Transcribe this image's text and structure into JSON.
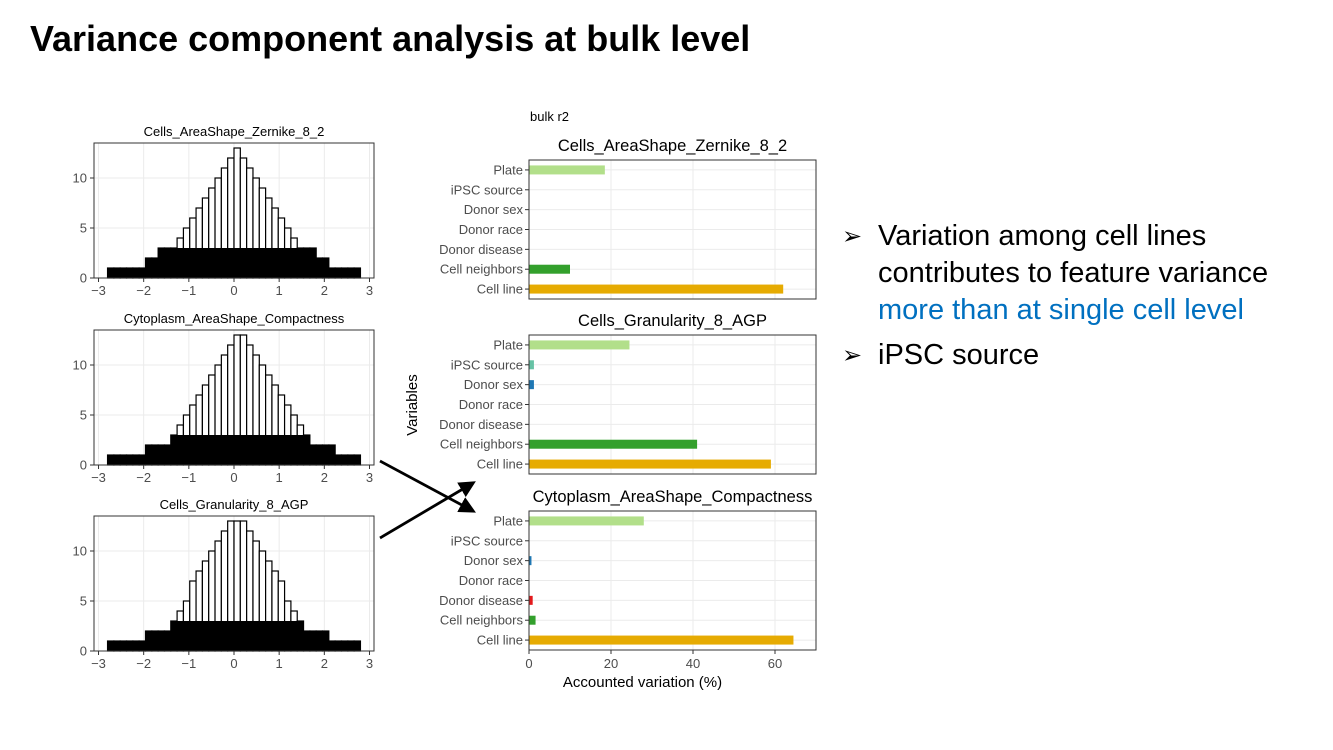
{
  "slide": {
    "title": "Variance component analysis at bulk level",
    "bullets": [
      {
        "marker": "➢",
        "lines": [
          "Variation among cell lines",
          "contributes to feature variance"
        ],
        "highlight": "more than at single cell level"
      },
      {
        "marker": "➢",
        "lines": [
          "iPSC source"
        ],
        "highlight": ""
      }
    ]
  },
  "chart_data": [
    {
      "type": "bar",
      "subtype": "histogram",
      "title": "Cells_AreaShape_Zernike_8_2",
      "xlim": [
        -3.1,
        3.1
      ],
      "ylim": [
        0,
        13.5
      ],
      "xticks": [
        -3,
        -2,
        -1,
        0,
        1,
        2,
        3
      ],
      "yticks": [
        0,
        5,
        10
      ],
      "outline_counts": [
        1,
        1,
        1,
        1,
        1,
        1,
        2,
        2,
        3,
        3,
        3,
        4,
        5,
        6,
        7,
        8,
        9,
        10,
        11,
        12,
        13,
        12,
        11,
        10,
        9,
        8,
        7,
        6,
        5,
        4,
        3,
        3,
        3,
        2,
        2,
        1,
        1,
        1,
        1,
        1
      ],
      "filled_counts": [
        1,
        1,
        1,
        1,
        1,
        1,
        2,
        2,
        3,
        3,
        3,
        3,
        3,
        3,
        3,
        3,
        3,
        3,
        3,
        3,
        3,
        3,
        3,
        3,
        3,
        3,
        3,
        3,
        3,
        3,
        3,
        3,
        3,
        2,
        2,
        1,
        1,
        1,
        1,
        1
      ]
    },
    {
      "type": "bar",
      "subtype": "histogram",
      "title": "Cytoplasm_AreaShape_Compactness",
      "xlim": [
        -3.1,
        3.1
      ],
      "ylim": [
        0,
        13.5
      ],
      "xticks": [
        -3,
        -2,
        -1,
        0,
        1,
        2,
        3
      ],
      "yticks": [
        0,
        5,
        10
      ],
      "outline_counts": [
        1,
        1,
        1,
        1,
        1,
        1,
        2,
        2,
        2,
        2,
        3,
        4,
        5,
        6,
        7,
        8,
        9,
        10,
        11,
        12,
        13,
        13,
        12,
        11,
        10,
        9,
        8,
        7,
        6,
        5,
        4,
        3,
        2,
        2,
        2,
        2,
        1,
        1,
        1,
        1
      ],
      "filled_counts": [
        1,
        1,
        1,
        1,
        1,
        1,
        2,
        2,
        2,
        2,
        3,
        3,
        3,
        3,
        3,
        3,
        3,
        3,
        3,
        3,
        3,
        3,
        3,
        3,
        3,
        3,
        3,
        3,
        3,
        3,
        3,
        3,
        2,
        2,
        2,
        2,
        1,
        1,
        1,
        1
      ]
    },
    {
      "type": "bar",
      "subtype": "histogram",
      "title": "Cells_Granularity_8_AGP",
      "xlim": [
        -3.1,
        3.1
      ],
      "ylim": [
        0,
        13.5
      ],
      "xticks": [
        -3,
        -2,
        -1,
        0,
        1,
        2,
        3
      ],
      "yticks": [
        0,
        5,
        10
      ],
      "outline_counts": [
        1,
        1,
        1,
        1,
        1,
        1,
        2,
        2,
        2,
        2,
        3,
        4,
        5,
        7,
        8,
        9,
        10,
        11,
        12,
        13,
        13,
        13,
        12,
        11,
        10,
        9,
        8,
        7,
        5,
        4,
        3,
        2,
        2,
        2,
        2,
        1,
        1,
        1,
        1,
        1
      ],
      "filled_counts": [
        1,
        1,
        1,
        1,
        1,
        1,
        2,
        2,
        2,
        2,
        3,
        3,
        3,
        3,
        3,
        3,
        3,
        3,
        3,
        3,
        3,
        3,
        3,
        3,
        3,
        3,
        3,
        3,
        3,
        3,
        3,
        2,
        2,
        2,
        2,
        1,
        1,
        1,
        1,
        1
      ]
    },
    {
      "type": "bar",
      "orientation": "horizontal",
      "header": "bulk r2",
      "ylabel": "Variables",
      "xlabel": "Accounted variation (%)",
      "xlim": [
        0,
        70
      ],
      "xticks": [
        0,
        20,
        40,
        60
      ],
      "categories": [
        "Plate",
        "iPSC source",
        "Donor sex",
        "Donor race",
        "Donor disease",
        "Cell neighbors",
        "Cell line"
      ],
      "colors": [
        "#b2df8a",
        "#66c2a5",
        "#1f78b4",
        "#a6cee3",
        "#e31a1c",
        "#33a02c",
        "#e6ab02"
      ],
      "panels": [
        {
          "title": "Cells_AreaShape_Zernike_8_2",
          "values": [
            18.5,
            0,
            0,
            0,
            0,
            10,
            62
          ]
        },
        {
          "title": "Cells_Granularity_8_AGP",
          "values": [
            24.5,
            1.2,
            1.2,
            0,
            0,
            41,
            59
          ]
        },
        {
          "title": "Cytoplasm_AreaShape_Compactness",
          "values": [
            28,
            0,
            0.6,
            0,
            0.9,
            1.6,
            64.5
          ]
        }
      ]
    }
  ]
}
